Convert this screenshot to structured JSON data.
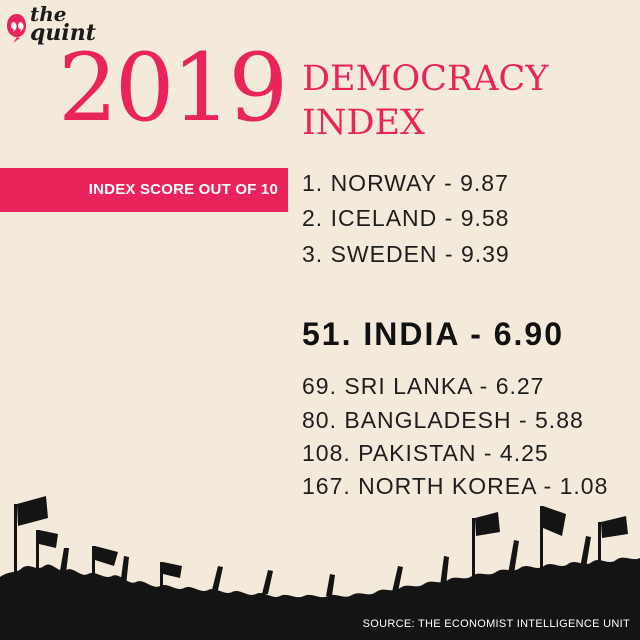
{
  "brand": {
    "line1": "the",
    "line2": "quint"
  },
  "title": {
    "year": "2019",
    "line1": "DEMOCRACY",
    "line2": "INDEX"
  },
  "banner": {
    "label": "INDEX SCORE OUT OF 10"
  },
  "rankings": {
    "top": [
      "1. NORWAY - 9.87",
      "2. ICELAND - 9.58",
      "3. SWEDEN - 9.39"
    ],
    "highlight": "51. INDIA - 6.90",
    "others": [
      "69. SRI LANKA - 6.27",
      "80. BANGLADESH - 5.88",
      "108. PAKISTAN - 4.25",
      "167. NORTH KOREA - 1.08"
    ]
  },
  "source": "SOURCE: THE ECONOMIST INTELLIGENCE UNIT",
  "colors": {
    "accent": "#e8245a",
    "background": "#f3eadb",
    "text": "#1e1e1e"
  },
  "icons": {
    "logo_mark": "quote-mark-icon",
    "crowd": "crowd-silhouette"
  }
}
